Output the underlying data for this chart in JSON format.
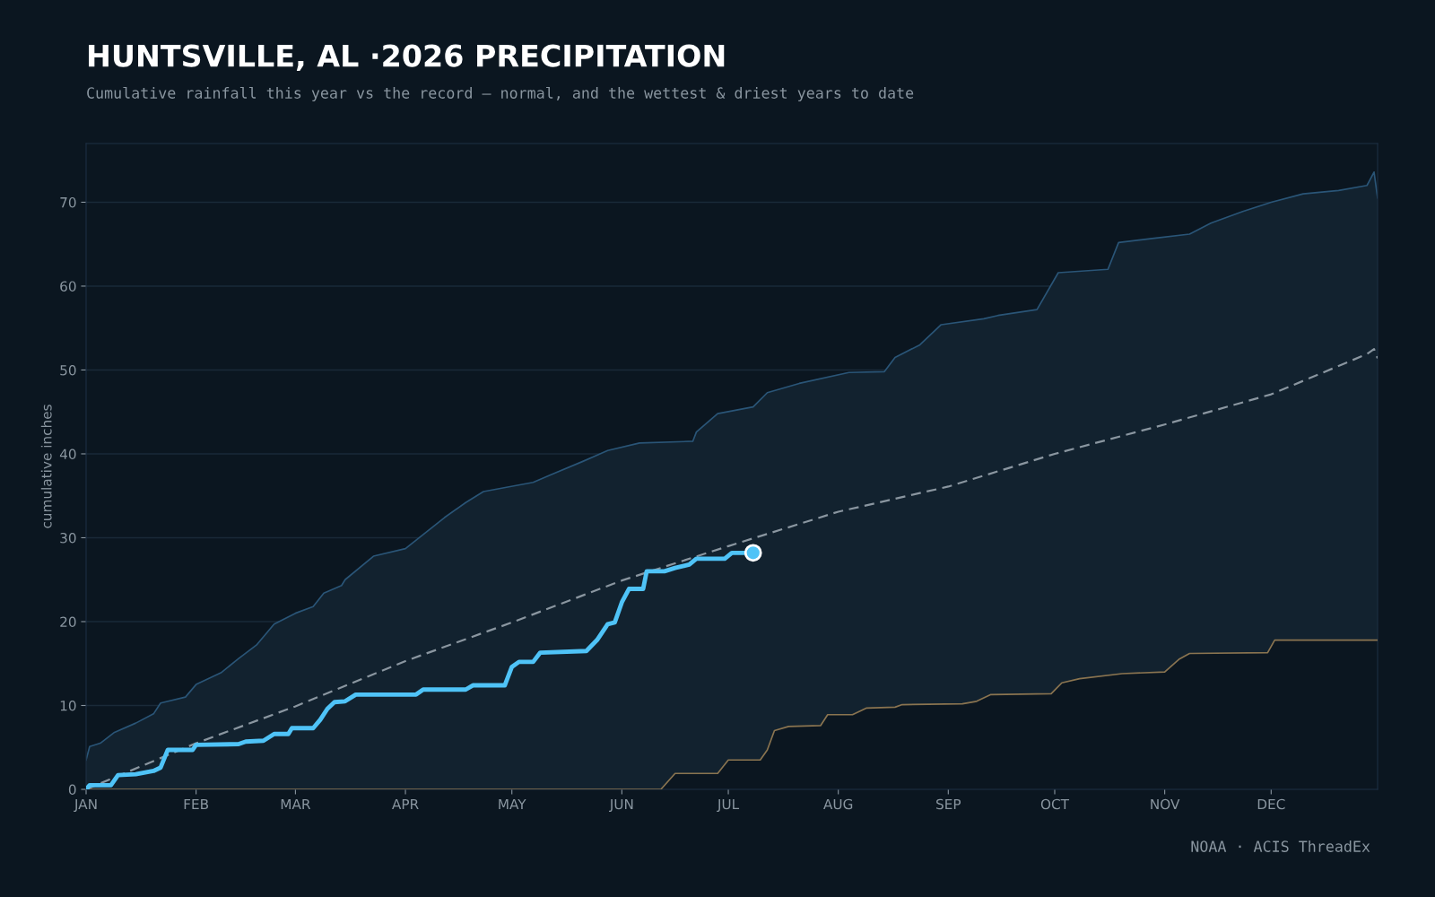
{
  "chart_data": {
    "type": "line",
    "title": "HUNTSVILLE, AL ·2026 PRECIPITATION",
    "subtitle": "Cumulative rainfall this year vs the record — normal, and the wettest & driest years to date",
    "ylabel": "cumulative inches",
    "annotations": [
      "NOAA · ACIS ThreadEx"
    ],
    "xlim": [
      "2026-01-01",
      "2026-12-31"
    ],
    "xticks": [
      {
        "value": "2026-01-01",
        "label": "JAN"
      },
      {
        "value": "2026-02-01",
        "label": "FEB"
      },
      {
        "value": "2026-03-01",
        "label": "MAR"
      },
      {
        "value": "2026-04-01",
        "label": "APR"
      },
      {
        "value": "2026-05-01",
        "label": "MAY"
      },
      {
        "value": "2026-06-01",
        "label": "JUN"
      },
      {
        "value": "2026-07-01",
        "label": "JUL"
      },
      {
        "value": "2026-08-01",
        "label": "AUG"
      },
      {
        "value": "2026-09-01",
        "label": "SEP"
      },
      {
        "value": "2026-10-01",
        "label": "OCT"
      },
      {
        "value": "2026-11-01",
        "label": "NOV"
      },
      {
        "value": "2026-12-01",
        "label": "DEC"
      }
    ],
    "ylim": [
      0,
      77
    ],
    "yticks": [
      0,
      10,
      20,
      30,
      40,
      50,
      60,
      70
    ],
    "grid": "y",
    "legend": false,
    "series": [
      {
        "type": "area",
        "color": "#2a5577",
        "x": [
          "2026-01-01",
          "2026-01-02",
          "2026-01-05",
          "2026-01-09",
          "2026-01-15",
          "2026-01-20",
          "2026-01-22",
          "2026-01-29",
          "2026-02-01",
          "2026-02-08",
          "2026-02-13",
          "2026-02-18",
          "2026-02-23",
          "2026-03-01",
          "2026-03-06",
          "2026-03-09",
          "2026-03-14",
          "2026-03-15",
          "2026-03-23",
          "2026-04-01",
          "2026-04-12",
          "2026-04-18",
          "2026-04-23",
          "2026-05-07",
          "2026-05-12",
          "2026-05-21",
          "2026-05-28",
          "2026-06-06",
          "2026-06-21",
          "2026-06-22",
          "2026-06-28",
          "2026-07-08",
          "2026-07-12",
          "2026-07-21",
          "2026-08-04",
          "2026-08-14",
          "2026-08-17",
          "2026-08-24",
          "2026-08-30",
          "2026-09-11",
          "2026-09-15",
          "2026-09-26",
          "2026-10-02",
          "2026-10-16",
          "2026-10-19",
          "2026-10-29",
          "2026-11-08",
          "2026-11-14",
          "2026-11-23",
          "2026-12-01",
          "2026-12-10",
          "2026-12-20",
          "2026-12-28",
          "2026-12-30",
          "2026-12-31"
        ],
        "values": [
          3.5,
          5.1,
          5.5,
          6.8,
          7.9,
          9,
          10.3,
          11,
          12.5,
          13.9,
          15.6,
          17.2,
          19.7,
          21,
          21.8,
          23.4,
          24.3,
          25,
          27.8,
          28.7,
          32.4,
          34.2,
          35.5,
          36.6,
          37.5,
          39.1,
          40.4,
          41.3,
          41.5,
          42.6,
          44.8,
          45.6,
          47.3,
          48.4,
          49.7,
          49.8,
          51.5,
          53,
          55.4,
          56.1,
          56.5,
          57.2,
          61.6,
          62,
          65.2,
          65.7,
          66.2,
          67.5,
          68.9,
          70,
          71,
          71.4,
          72,
          73.6,
          70.5
        ]
      },
      {
        "type": "area",
        "color": "#8a7450",
        "x": [
          "2026-01-01",
          "2026-06-12",
          "2026-06-16",
          "2026-06-28",
          "2026-07-01",
          "2026-07-10",
          "2026-07-12",
          "2026-07-14",
          "2026-07-18",
          "2026-07-27",
          "2026-07-29",
          "2026-08-05",
          "2026-08-09",
          "2026-08-17",
          "2026-08-19",
          "2026-09-05",
          "2026-09-09",
          "2026-09-13",
          "2026-09-30",
          "2026-10-03",
          "2026-10-08",
          "2026-10-20",
          "2026-11-01",
          "2026-11-05",
          "2026-11-08",
          "2026-11-30",
          "2026-12-02",
          "2026-12-31"
        ],
        "values": [
          0,
          0,
          1.9,
          1.9,
          3.5,
          3.5,
          4.7,
          7,
          7.5,
          7.6,
          8.9,
          8.9,
          9.7,
          9.8,
          10.1,
          10.2,
          10.5,
          11.3,
          11.4,
          12.7,
          13.2,
          13.8,
          14,
          15.5,
          16.2,
          16.3,
          17.8,
          17.8
        ]
      },
      {
        "type": "line",
        "line_style": "dashed",
        "color": "#8a96a0",
        "x": [
          "2026-01-01",
          "2026-02-01",
          "2026-03-01",
          "2026-04-01",
          "2026-05-01",
          "2026-06-01",
          "2026-07-01",
          "2026-08-01",
          "2026-09-01",
          "2026-10-01",
          "2026-11-01",
          "2026-12-01",
          "2026-12-28",
          "2026-12-30",
          "2026-12-31"
        ],
        "values": [
          0,
          5.5,
          9.9,
          15.3,
          19.9,
          24.9,
          29,
          33.1,
          36.1,
          40,
          43.5,
          47.1,
          51.9,
          52.5,
          51.4
        ]
      },
      {
        "type": "line",
        "color": "#4fc3f7",
        "x": [
          "2026-01-01",
          "2026-01-02",
          "2026-01-08",
          "2026-01-10",
          "2026-01-15",
          "2026-01-20",
          "2026-01-22",
          "2026-01-24",
          "2026-01-31",
          "2026-02-01",
          "2026-02-13",
          "2026-02-15",
          "2026-02-20",
          "2026-02-23",
          "2026-02-27",
          "2026-02-28",
          "2026-03-06",
          "2026-03-08",
          "2026-03-10",
          "2026-03-12",
          "2026-03-15",
          "2026-03-18",
          "2026-04-04",
          "2026-04-06",
          "2026-04-18",
          "2026-04-20",
          "2026-04-29",
          "2026-05-01",
          "2026-05-03",
          "2026-05-07",
          "2026-05-09",
          "2026-05-22",
          "2026-05-25",
          "2026-05-28",
          "2026-05-30",
          "2026-06-01",
          "2026-06-03",
          "2026-06-07",
          "2026-06-08",
          "2026-06-13",
          "2026-06-16",
          "2026-06-20",
          "2026-06-22",
          "2026-06-30",
          "2026-07-02",
          "2026-07-08"
        ],
        "values": [
          0,
          0.5,
          0.5,
          1.7,
          1.8,
          2.2,
          2.6,
          4.7,
          4.7,
          5.3,
          5.4,
          5.7,
          5.8,
          6.6,
          6.6,
          7.3,
          7.3,
          8.3,
          9.6,
          10.4,
          10.5,
          11.3,
          11.3,
          11.9,
          11.9,
          12.4,
          12.4,
          14.6,
          15.2,
          15.2,
          16.3,
          16.5,
          17.8,
          19.7,
          19.9,
          22.3,
          23.9,
          23.9,
          26,
          26,
          26.4,
          26.8,
          27.5,
          27.5,
          28.2,
          28.2
        ]
      },
      {
        "type": "scatter",
        "marker": "circle",
        "color": "#4fc3f7",
        "x": [
          "2026-07-08"
        ],
        "values": [
          28.2
        ]
      }
    ]
  }
}
